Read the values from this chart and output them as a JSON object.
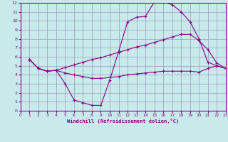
{
  "xlabel": "Windchill (Refroidissement éolien,°C)",
  "bg_color": "#c8eaea",
  "line_color": "#880088",
  "grid_color": "#9999bb",
  "xlim": [
    0,
    23
  ],
  "ylim": [
    0,
    12
  ],
  "xticks": [
    0,
    1,
    2,
    3,
    4,
    5,
    6,
    7,
    8,
    9,
    10,
    11,
    12,
    13,
    14,
    15,
    16,
    17,
    18,
    19,
    20,
    21,
    22,
    23
  ],
  "yticks": [
    0,
    1,
    2,
    3,
    4,
    5,
    6,
    7,
    8,
    9,
    10,
    11,
    12
  ],
  "curve1_x": [
    1,
    2,
    3,
    4,
    5,
    6,
    7,
    8,
    9,
    10,
    11,
    12,
    13,
    14,
    15,
    16,
    17,
    18,
    19,
    20,
    21,
    22,
    23
  ],
  "curve1_y": [
    5.7,
    4.7,
    4.4,
    4.5,
    3.0,
    1.2,
    0.9,
    0.6,
    0.6,
    3.4,
    6.6,
    9.9,
    10.4,
    10.5,
    12.1,
    12.1,
    11.8,
    11.0,
    9.9,
    8.0,
    5.4,
    5.0,
    4.7
  ],
  "curve2_x": [
    1,
    2,
    3,
    4,
    5,
    6,
    7,
    8,
    9,
    10,
    11,
    12,
    13,
    14,
    15,
    16,
    17,
    18,
    19,
    20,
    21,
    22,
    23
  ],
  "curve2_y": [
    5.7,
    4.7,
    4.4,
    4.5,
    4.8,
    5.1,
    5.4,
    5.7,
    5.9,
    6.2,
    6.5,
    6.8,
    7.1,
    7.3,
    7.6,
    7.9,
    8.2,
    8.5,
    8.5,
    7.8,
    6.8,
    5.3,
    4.7
  ],
  "curve3_x": [
    1,
    2,
    3,
    4,
    5,
    6,
    7,
    8,
    9,
    10,
    11,
    12,
    13,
    14,
    15,
    16,
    17,
    18,
    19,
    20,
    21,
    22,
    23
  ],
  "curve3_y": [
    5.7,
    4.7,
    4.4,
    4.5,
    4.2,
    4.0,
    3.8,
    3.6,
    3.6,
    3.7,
    3.8,
    4.0,
    4.1,
    4.2,
    4.3,
    4.4,
    4.4,
    4.4,
    4.4,
    4.3,
    4.7,
    5.0,
    4.7
  ]
}
